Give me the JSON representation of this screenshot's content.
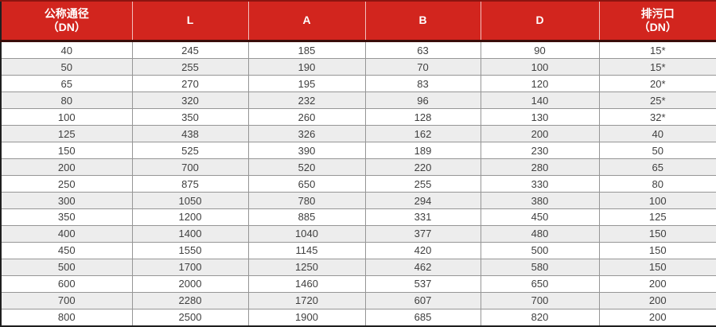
{
  "table": {
    "columns": [
      {
        "line1": "公称通径",
        "line2": "（DN）"
      },
      {
        "line1": "L",
        "line2": ""
      },
      {
        "line1": "A",
        "line2": ""
      },
      {
        "line1": "B",
        "line2": ""
      },
      {
        "line1": "D",
        "line2": ""
      },
      {
        "line1": "排污口",
        "line2": "（DN）"
      }
    ],
    "rows": [
      [
        "40",
        "245",
        "185",
        "63",
        "90",
        "15*"
      ],
      [
        "50",
        "255",
        "190",
        "70",
        "100",
        "15*"
      ],
      [
        "65",
        "270",
        "195",
        "83",
        "120",
        "20*"
      ],
      [
        "80",
        "320",
        "232",
        "96",
        "140",
        "25*"
      ],
      [
        "100",
        "350",
        "260",
        "128",
        "130",
        "32*"
      ],
      [
        "125",
        "438",
        "326",
        "162",
        "200",
        "40"
      ],
      [
        "150",
        "525",
        "390",
        "189",
        "230",
        "50"
      ],
      [
        "200",
        "700",
        "520",
        "220",
        "280",
        "65"
      ],
      [
        "250",
        "875",
        "650",
        "255",
        "330",
        "80"
      ],
      [
        "300",
        "1050",
        "780",
        "294",
        "380",
        "100"
      ],
      [
        "350",
        "1200",
        "885",
        "331",
        "450",
        "125"
      ],
      [
        "400",
        "1400",
        "1040",
        "377",
        "480",
        "150"
      ],
      [
        "450",
        "1550",
        "1145",
        "420",
        "500",
        "150"
      ],
      [
        "500",
        "1700",
        "1250",
        "462",
        "580",
        "150"
      ],
      [
        "600",
        "2000",
        "1460",
        "537",
        "650",
        "200"
      ],
      [
        "700",
        "2280",
        "1720",
        "607",
        "700",
        "200"
      ],
      [
        "800",
        "2500",
        "1900",
        "685",
        "820",
        "200"
      ]
    ]
  },
  "colors": {
    "header_bg": "#d2251e",
    "header_text": "#ffffff",
    "header_underline": "#3a0d0a",
    "outer_border": "#1f1f1f",
    "grid_line": "#969696",
    "row_alt_bg": "#ededed",
    "body_text": "#404040"
  }
}
